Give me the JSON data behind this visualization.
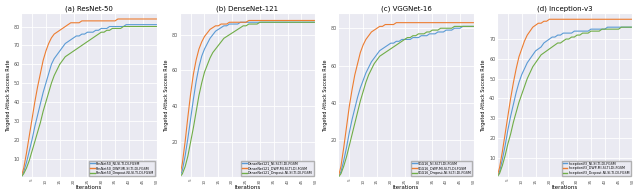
{
  "subplots": [
    {
      "title": "(a) ResNet-50",
      "ylabel": "Targeted Attack Success Rate",
      "xlabel": "Iterations",
      "legend": [
        "ResNet50_NI-SI-TI-DI-FGSM",
        "ResNet50_DWP-MI-SI-TI-DI-FGSM",
        "ResNet50_Dropout-NI-SI-TI-DI-FGSM"
      ],
      "ylim": [
        0,
        87
      ],
      "yticks": [
        10,
        20,
        30,
        40,
        50,
        60,
        70,
        80
      ]
    },
    {
      "title": "(b) DenseNet-121",
      "ylabel": "Targeted Attack Success Rate",
      "xlabel": "Iterations",
      "legend": [
        "DenseNet121_NI-SI-TI-DI-FGSM",
        "DenseNet121_DWP-MI-SI-TI-DI-FGSM",
        "DenseNet121_Dropout-NI-SI-TI-DI-FGSM"
      ],
      "ylim": [
        0,
        92
      ],
      "yticks": [
        20,
        40,
        60,
        80
      ]
    },
    {
      "title": "(c) VGGNet-16",
      "ylabel": "Targeted Attack Success Rate",
      "xlabel": "Iterations",
      "legend": [
        "VGG16_NI-SI-TI-DI-FGSM",
        "VGG16_DWP-MI-SI-TI-DI-FGSM",
        "VGG16_Dropout-NI-SI-TI-DI-FGSM"
      ],
      "ylim": [
        0,
        88
      ],
      "yticks": [
        20,
        40,
        60,
        80
      ]
    },
    {
      "title": "(d) Inception-v3",
      "ylabel": "Targeted Attack Success Rate",
      "xlabel": "Iterations",
      "legend": [
        "InceptionV3_NI-SI-TI-DI-FGSM",
        "InceptionV3_DWP-MI-SI-TI-DI-FGSM",
        "InceptionV3_Dropout-NI-SI-TI-DI-FGSM"
      ],
      "ylim": [
        0,
        83
      ],
      "yticks": [
        10,
        20,
        30,
        40,
        50,
        60,
        70
      ]
    }
  ],
  "colors": [
    "#5b9bd5",
    "#ed7d31",
    "#70ad47"
  ],
  "n_iterations": 50,
  "curves": {
    "resnet50": {
      "blue": [
        0,
        3,
        8,
        14,
        20,
        27,
        33,
        39,
        45,
        50,
        55,
        60,
        63,
        65,
        67,
        69,
        71,
        72,
        73,
        74,
        75,
        75,
        76,
        76,
        77,
        77,
        77,
        78,
        78,
        79,
        79,
        79,
        80,
        80,
        80,
        80,
        80,
        80,
        81,
        81,
        81,
        81,
        81,
        81,
        81,
        81,
        81,
        81,
        81,
        81
      ],
      "orange": [
        0,
        5,
        13,
        22,
        31,
        40,
        48,
        55,
        62,
        67,
        71,
        74,
        76,
        77,
        78,
        79,
        80,
        81,
        82,
        82,
        82,
        82,
        83,
        83,
        83,
        83,
        83,
        83,
        83,
        83,
        83,
        83,
        83,
        83,
        83,
        84,
        84,
        84,
        84,
        84,
        84,
        84,
        84,
        84,
        84,
        84,
        84,
        84,
        84,
        84
      ],
      "green": [
        0,
        2,
        5,
        9,
        14,
        19,
        24,
        29,
        35,
        40,
        45,
        50,
        54,
        57,
        60,
        62,
        64,
        65,
        66,
        67,
        68,
        69,
        70,
        71,
        72,
        73,
        74,
        75,
        76,
        77,
        77,
        78,
        78,
        79,
        79,
        79,
        79,
        80,
        80,
        80,
        80,
        80,
        80,
        80,
        80,
        80,
        80,
        80,
        80,
        80
      ]
    },
    "densenet121": {
      "blue": [
        0,
        4,
        12,
        22,
        33,
        44,
        54,
        62,
        68,
        72,
        75,
        78,
        80,
        82,
        83,
        84,
        85,
        85,
        86,
        86,
        86,
        86,
        87,
        87,
        87,
        87,
        87,
        87,
        87,
        87,
        87,
        87,
        87,
        87,
        87,
        87,
        87,
        87,
        87,
        87,
        87,
        87,
        87,
        87,
        87,
        87,
        87,
        87,
        87,
        87
      ],
      "orange": [
        0,
        8,
        20,
        34,
        47,
        58,
        66,
        72,
        76,
        79,
        81,
        83,
        84,
        85,
        85,
        86,
        86,
        86,
        87,
        87,
        87,
        87,
        87,
        87,
        87,
        88,
        88,
        88,
        88,
        88,
        88,
        88,
        88,
        88,
        88,
        88,
        88,
        88,
        88,
        88,
        88,
        88,
        88,
        88,
        88,
        88,
        88,
        88,
        88,
        88
      ],
      "green": [
        0,
        2,
        6,
        12,
        20,
        28,
        37,
        46,
        53,
        59,
        63,
        67,
        70,
        72,
        74,
        76,
        78,
        79,
        80,
        81,
        82,
        83,
        84,
        85,
        85,
        86,
        86,
        86,
        86,
        87,
        87,
        87,
        87,
        87,
        87,
        87,
        87,
        87,
        87,
        87,
        87,
        87,
        87,
        87,
        87,
        87,
        87,
        87,
        87,
        87
      ]
    },
    "vgg16": {
      "blue": [
        0,
        3,
        9,
        16,
        24,
        31,
        37,
        43,
        48,
        52,
        56,
        59,
        62,
        64,
        66,
        68,
        69,
        70,
        71,
        72,
        72,
        73,
        73,
        74,
        74,
        74,
        74,
        75,
        75,
        75,
        76,
        76,
        76,
        77,
        77,
        77,
        78,
        78,
        78,
        79,
        79,
        79,
        80,
        80,
        80,
        81,
        81,
        81,
        81,
        81
      ],
      "orange": [
        0,
        6,
        16,
        27,
        38,
        47,
        55,
        61,
        67,
        71,
        74,
        76,
        78,
        79,
        80,
        81,
        81,
        82,
        82,
        82,
        82,
        83,
        83,
        83,
        83,
        83,
        83,
        83,
        83,
        83,
        83,
        83,
        83,
        83,
        83,
        83,
        83,
        83,
        83,
        83,
        83,
        83,
        83,
        83,
        83,
        83,
        83,
        83,
        83,
        83
      ],
      "green": [
        0,
        2,
        6,
        11,
        17,
        23,
        29,
        35,
        41,
        46,
        51,
        55,
        58,
        61,
        63,
        65,
        66,
        67,
        68,
        69,
        70,
        71,
        72,
        73,
        74,
        75,
        75,
        76,
        76,
        77,
        77,
        77,
        78,
        78,
        79,
        79,
        79,
        80,
        80,
        80,
        80,
        80,
        81,
        81,
        81,
        81,
        81,
        81,
        81,
        81
      ]
    },
    "inception_v3": {
      "blue": [
        0,
        3,
        9,
        16,
        24,
        31,
        37,
        43,
        48,
        52,
        55,
        58,
        60,
        62,
        64,
        65,
        66,
        68,
        69,
        70,
        71,
        71,
        72,
        72,
        73,
        73,
        73,
        73,
        74,
        74,
        74,
        74,
        74,
        74,
        75,
        75,
        75,
        75,
        75,
        75,
        76,
        76,
        76,
        76,
        76,
        76,
        76,
        76,
        76,
        76
      ],
      "orange": [
        0,
        5,
        13,
        22,
        31,
        40,
        48,
        55,
        61,
        65,
        69,
        72,
        74,
        76,
        77,
        78,
        78,
        79,
        79,
        80,
        80,
        80,
        80,
        80,
        80,
        80,
        80,
        80,
        80,
        80,
        80,
        80,
        80,
        80,
        80,
        80,
        80,
        80,
        80,
        80,
        80,
        80,
        80,
        80,
        80,
        80,
        80,
        80,
        80,
        80
      ],
      "green": [
        0,
        2,
        6,
        11,
        17,
        22,
        28,
        33,
        38,
        42,
        46,
        50,
        53,
        56,
        58,
        60,
        62,
        63,
        64,
        65,
        66,
        67,
        68,
        68,
        69,
        70,
        70,
        71,
        71,
        72,
        72,
        73,
        73,
        73,
        74,
        74,
        74,
        74,
        75,
        75,
        75,
        75,
        75,
        75,
        75,
        76,
        76,
        76,
        76,
        76
      ]
    }
  }
}
